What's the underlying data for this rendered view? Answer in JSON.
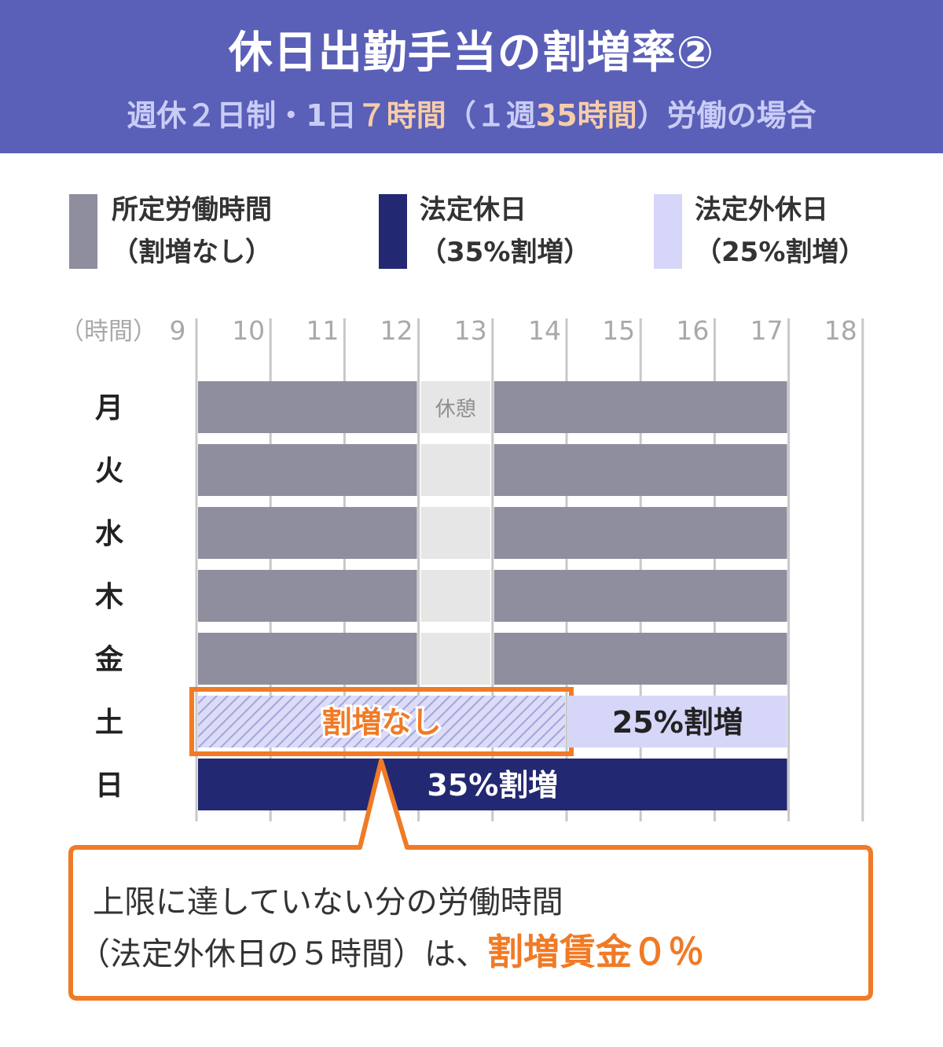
{
  "header": {
    "title": "休日出勤手当の割増率②",
    "subtitle": {
      "part1": "週休２日制・1日",
      "part2": "７時間",
      "part3": "（１週",
      "part4": "35時間",
      "part5": "）労働の場合"
    }
  },
  "legend": [
    {
      "line1": "所定労働時間",
      "line2": "（割増なし）",
      "color": "#8e8e9e"
    },
    {
      "line1": "法定休日",
      "line2": "（35%割増）",
      "color": "#232873"
    },
    {
      "line1": "法定外休日",
      "line2": "（25%割増）",
      "color": "#d5d6f8"
    }
  ],
  "chart_data": {
    "type": "bar",
    "orientation": "horizontal-timeline",
    "x_axis_label": "（時間）",
    "x_ticks": [
      9,
      10,
      11,
      12,
      13,
      14,
      15,
      16,
      17,
      18
    ],
    "xlim": [
      9,
      18
    ],
    "days": [
      "月",
      "火",
      "水",
      "木",
      "金",
      "土",
      "日"
    ],
    "break_label": "休憩",
    "bars": [
      {
        "day": "月",
        "start": 9,
        "end": 12,
        "kind": "work"
      },
      {
        "day": "月",
        "start": 13,
        "end": 17,
        "kind": "work"
      },
      {
        "day": "火",
        "start": 9,
        "end": 12,
        "kind": "work"
      },
      {
        "day": "火",
        "start": 13,
        "end": 17,
        "kind": "work"
      },
      {
        "day": "水",
        "start": 9,
        "end": 12,
        "kind": "work"
      },
      {
        "day": "水",
        "start": 13,
        "end": 17,
        "kind": "work"
      },
      {
        "day": "木",
        "start": 9,
        "end": 12,
        "kind": "work"
      },
      {
        "day": "木",
        "start": 13,
        "end": 17,
        "kind": "work"
      },
      {
        "day": "金",
        "start": 9,
        "end": 12,
        "kind": "work"
      },
      {
        "day": "金",
        "start": 13,
        "end": 17,
        "kind": "work"
      },
      {
        "day": "土",
        "start": 9,
        "end": 14,
        "kind": "no-premium",
        "label": "割増なし"
      },
      {
        "day": "土",
        "start": 14,
        "end": 17,
        "kind": "premium25",
        "label": "25%割増"
      },
      {
        "day": "日",
        "start": 9,
        "end": 17,
        "kind": "premium35",
        "label": "35%割増"
      }
    ],
    "break": {
      "start": 12,
      "end": 13,
      "days": [
        "月",
        "火",
        "水",
        "木",
        "金"
      ]
    },
    "colors": {
      "work": "#8e8e9e",
      "premium35": "#232873",
      "premium25": "#d5d6f8",
      "break": "#e6e6e6",
      "highlight": "#f07a26"
    }
  },
  "callout": {
    "line1": "上限に達していない分の労働時間",
    "line2_part1": "（法定外休日の５時間）は、",
    "line2_part2": "割増賃金０％"
  }
}
